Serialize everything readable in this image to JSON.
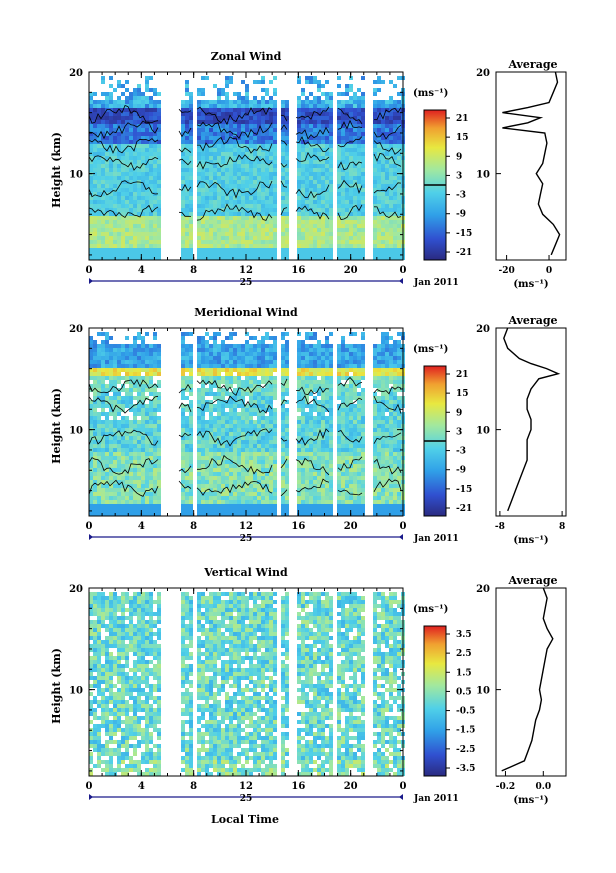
{
  "charts": [
    {
      "title": "Zonal Wind",
      "ylabel": "Height (km)",
      "y_ticks": [
        "20",
        "10"
      ],
      "x_ticks": [
        "0",
        "4",
        "8",
        "12",
        "16",
        "20",
        "0"
      ],
      "date_label": "25",
      "month_label": "Jan 2011",
      "colorbar_unit": "(ms⁻¹)",
      "colorbar_ticks": [
        "21",
        "15",
        "9",
        "3",
        "-3",
        "-9",
        "-15",
        "-21"
      ],
      "avg_title": "Average",
      "avg_x_ticks": [
        "-20",
        "0"
      ],
      "avg_unit": "(ms⁻¹)",
      "avg_y_ticks": [
        "20",
        "10"
      ]
    },
    {
      "title": "Meridional Wind",
      "ylabel": "Height (km)",
      "y_ticks": [
        "20",
        "10"
      ],
      "x_ticks": [
        "0",
        "4",
        "8",
        "12",
        "16",
        "20",
        "0"
      ],
      "date_label": "25",
      "month_label": "Jan 2011",
      "colorbar_unit": "(ms⁻¹)",
      "colorbar_ticks": [
        "21",
        "15",
        "9",
        "3",
        "-3",
        "-9",
        "-15",
        "-21"
      ],
      "avg_title": "Average",
      "avg_x_ticks": [
        "-8",
        "8"
      ],
      "avg_unit": "(ms⁻¹)",
      "avg_y_ticks": [
        "20",
        "10"
      ]
    },
    {
      "title": "Vertical Wind",
      "ylabel": "Height (km)",
      "y_ticks": [
        "20",
        "10"
      ],
      "x_ticks": [
        "0",
        "4",
        "8",
        "12",
        "16",
        "20",
        "0"
      ],
      "date_label": "25",
      "month_label": "Jan 2011",
      "colorbar_unit": "(ms⁻¹)",
      "colorbar_ticks": [
        "3.5",
        "2.5",
        "1.5",
        "0.5",
        "-0.5",
        "-1.5",
        "-2.5",
        "-3.5"
      ],
      "avg_title": "Average",
      "avg_x_ticks": [
        "-0.2",
        "0.0"
      ],
      "avg_unit": "(ms⁻¹)",
      "avg_y_ticks": [
        "20",
        "10"
      ]
    }
  ],
  "xlabel": "Local Time",
  "chart_data": [
    {
      "type": "heatmap",
      "title": "Zonal Wind",
      "xlabel": "Local Time",
      "ylabel": "Height (km)",
      "xlim": [
        0,
        24
      ],
      "ylim": [
        1.5,
        20
      ],
      "color_range": [
        -24,
        24
      ],
      "colormap_colors": [
        "#2a2a80",
        "#3050d0",
        "#30a0e8",
        "#50d0e8",
        "#a0e8a0",
        "#e8e840",
        "#f0a030",
        "#e02020"
      ],
      "data_gaps_hours": [
        [
          5.5,
          6.8
        ],
        [
          7.8,
          8.2
        ],
        [
          14.1,
          14.5
        ],
        [
          15.2,
          15.6
        ],
        [
          18.5,
          18.9
        ],
        [
          21.0,
          21.7
        ]
      ],
      "average_profile": {
        "xlabel": "(ms⁻¹)",
        "xlim": [
          -25,
          8
        ],
        "height_km": [
          2,
          3,
          4,
          5,
          6,
          7,
          8,
          9,
          10,
          11,
          12,
          13,
          14,
          14.5,
          15,
          15.5,
          16,
          16.5,
          17,
          18,
          19,
          20
        ],
        "values": [
          1,
          3,
          5,
          2,
          -3,
          -5,
          -4,
          -3,
          -6,
          -3,
          -2,
          -1,
          -2,
          -22,
          -10,
          -4,
          -22,
          -10,
          0,
          2,
          4,
          3
        ]
      }
    },
    {
      "type": "heatmap",
      "title": "Meridional Wind",
      "xlabel": "Local Time",
      "ylabel": "Height (km)",
      "xlim": [
        0,
        24
      ],
      "ylim": [
        1.5,
        20
      ],
      "color_range": [
        -24,
        24
      ],
      "colormap_colors": [
        "#2a2a80",
        "#3050d0",
        "#30a0e8",
        "#50d0e8",
        "#a0e8a0",
        "#e8e840",
        "#f0a030",
        "#e02020"
      ],
      "data_gaps_hours": [
        [
          5.5,
          6.8
        ],
        [
          7.8,
          8.2
        ],
        [
          14.1,
          14.5
        ],
        [
          15.2,
          15.6
        ],
        [
          18.5,
          18.9
        ],
        [
          21.0,
          21.7
        ]
      ],
      "average_profile": {
        "xlabel": "(ms⁻¹)",
        "xlim": [
          -9,
          9
        ],
        "height_km": [
          2,
          3,
          4,
          5,
          6,
          7,
          8,
          9,
          10,
          11,
          12,
          13,
          14,
          15,
          15.5,
          16,
          16.5,
          17,
          18,
          19,
          20
        ],
        "values": [
          -6,
          -5,
          -4,
          -3,
          -2,
          -1,
          -1,
          -1,
          0,
          0,
          -1,
          -1,
          0,
          2,
          7,
          4,
          0,
          -3,
          -6,
          -7,
          -6
        ]
      }
    },
    {
      "type": "heatmap",
      "title": "Vertical Wind",
      "xlabel": "Local Time",
      "ylabel": "Height (km)",
      "xlim": [
        0,
        24
      ],
      "ylim": [
        1.5,
        20
      ],
      "color_range": [
        -4,
        4
      ],
      "colormap_colors": [
        "#2a2a80",
        "#3050d0",
        "#30a0e8",
        "#50d0e8",
        "#a0e8a0",
        "#e8e840",
        "#f0a030",
        "#e02020"
      ],
      "data_gaps_hours": [
        [
          5.5,
          6.8
        ],
        [
          7.8,
          8.2
        ],
        [
          14.1,
          14.5
        ],
        [
          15.2,
          15.6
        ],
        [
          18.5,
          18.9
        ],
        [
          21.0,
          21.7
        ]
      ],
      "average_profile": {
        "xlabel": "(ms⁻¹)",
        "xlim": [
          -0.25,
          0.12
        ],
        "height_km": [
          2,
          3,
          4,
          5,
          6,
          7,
          8,
          9,
          10,
          11,
          12,
          13,
          14,
          15,
          16,
          17,
          18,
          19,
          20
        ],
        "values": [
          -0.22,
          -0.1,
          -0.08,
          -0.06,
          -0.05,
          -0.04,
          -0.02,
          -0.01,
          -0.02,
          -0.01,
          0.0,
          0.01,
          0.02,
          0.05,
          0.02,
          0.0,
          0.01,
          0.02,
          0.0
        ]
      }
    }
  ]
}
